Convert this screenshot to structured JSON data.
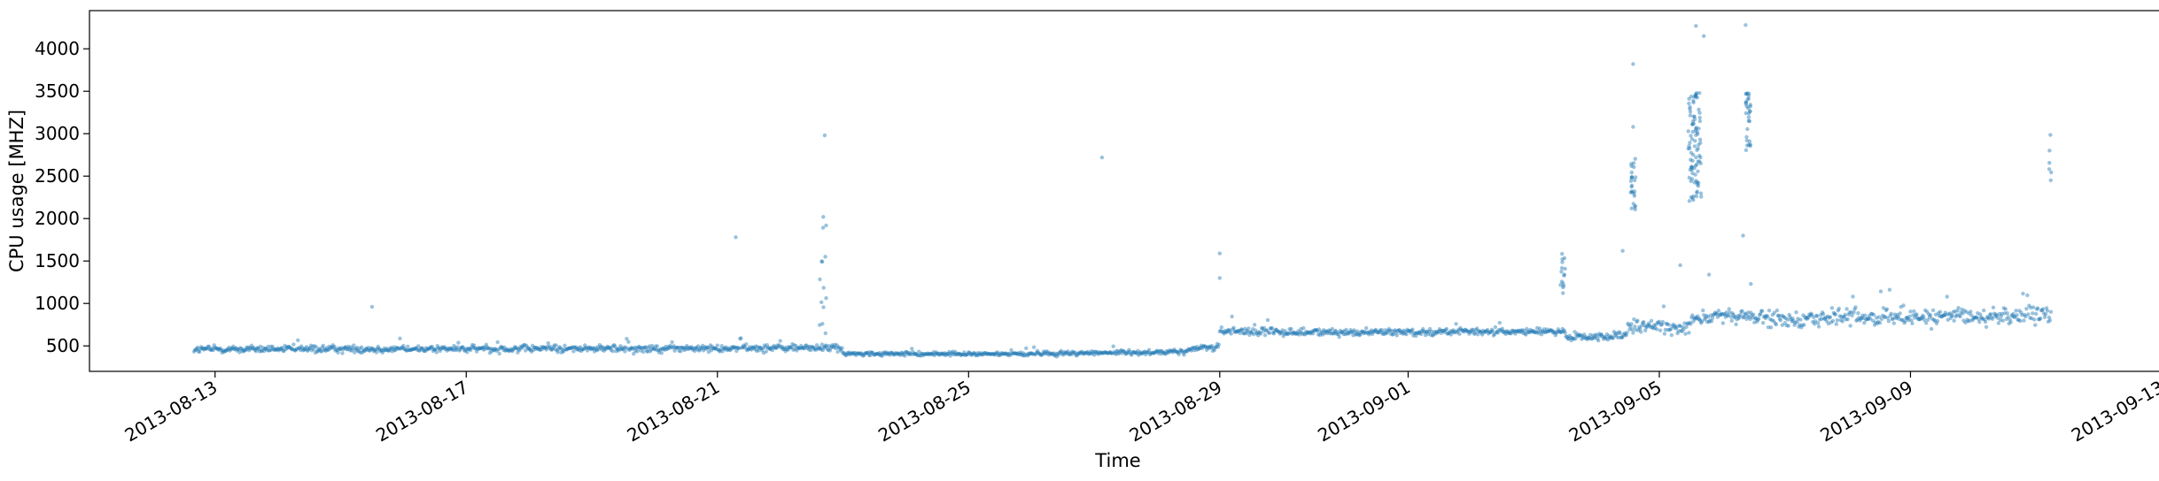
{
  "chart_data": {
    "type": "scatter",
    "title": "",
    "xlabel": "Time",
    "ylabel": "CPU usage [MHZ]",
    "xlim": [
      "2013-08-11",
      "2013-09-13"
    ],
    "ylim": [
      200,
      4450
    ],
    "grid": false,
    "marker_color": "#1f77b4",
    "x_ticks": [
      "2013-08-13",
      "2013-08-17",
      "2013-08-21",
      "2013-08-25",
      "2013-08-29",
      "2013-09-01",
      "2013-09-05",
      "2013-09-09",
      "2013-09-13"
    ],
    "y_ticks": [
      500,
      1000,
      1500,
      2000,
      2500,
      3000,
      3500,
      4000
    ],
    "baseline_segments": [
      {
        "start": "2013-08-12T16:00",
        "end": "2013-08-21T00:00",
        "y_start": 460,
        "y_end": 470,
        "noise": 45
      },
      {
        "start": "2013-08-21T00:00",
        "end": "2013-08-23T00:00",
        "y_start": 470,
        "y_end": 480,
        "noise": 50
      },
      {
        "start": "2013-08-23T00:00",
        "end": "2013-08-26T00:00",
        "y_start": 405,
        "y_end": 405,
        "noise": 25
      },
      {
        "start": "2013-08-26T00:00",
        "end": "2013-08-28T12:00",
        "y_start": 410,
        "y_end": 430,
        "noise": 30
      },
      {
        "start": "2013-08-28T12:00",
        "end": "2013-08-29T00:00",
        "y_start": 460,
        "y_end": 500,
        "noise": 40
      },
      {
        "start": "2013-08-29T00:00",
        "end": "2013-08-30T00:00",
        "y_start": 680,
        "y_end": 660,
        "noise": 60
      },
      {
        "start": "2013-08-30T00:00",
        "end": "2013-09-03T12:00",
        "y_start": 660,
        "y_end": 670,
        "noise": 45
      },
      {
        "start": "2013-09-03T12:00",
        "end": "2013-09-04T12:00",
        "y_start": 600,
        "y_end": 620,
        "noise": 50
      },
      {
        "start": "2013-09-04T12:00",
        "end": "2013-09-05T12:00",
        "y_start": 720,
        "y_end": 730,
        "noise": 90
      },
      {
        "start": "2013-09-05T12:00",
        "end": "2013-09-06T12:00",
        "y_start": 840,
        "y_end": 850,
        "noise": 90
      },
      {
        "start": "2013-09-06T12:00",
        "end": "2013-09-11T06:00",
        "y_start": 820,
        "y_end": 860,
        "noise": 110
      }
    ],
    "bursts": [
      {
        "start": "2013-09-04T13:00",
        "end": "2013-09-04T15:00",
        "y_min": 2100,
        "y_max": 2750,
        "count": 25
      },
      {
        "start": "2013-09-05T11:00",
        "end": "2013-09-05T16:00",
        "y_min": 2200,
        "y_max": 3500,
        "count": 90
      },
      {
        "start": "2013-09-06T09:00",
        "end": "2013-09-06T11:00",
        "y_min": 2800,
        "y_max": 3500,
        "count": 30
      },
      {
        "start": "2013-09-03T10:00",
        "end": "2013-09-03T12:00",
        "y_min": 1100,
        "y_max": 1600,
        "count": 15
      },
      {
        "start": "2013-08-22T15:00",
        "end": "2013-08-22T18:00",
        "y_min": 600,
        "y_max": 2100,
        "count": 14
      },
      {
        "start": "2013-09-11T04:00",
        "end": "2013-09-11T06:00",
        "y_min": 2400,
        "y_max": 3150,
        "count": 6
      }
    ],
    "outliers": [
      {
        "x": "2013-08-22T17:00",
        "y": 2980
      },
      {
        "x": "2013-08-21T07:00",
        "y": 1780
      },
      {
        "x": "2013-08-27T03:00",
        "y": 2720
      },
      {
        "x": "2013-08-29T00:00",
        "y": 1590
      },
      {
        "x": "2013-08-29T00:00",
        "y": 1300
      },
      {
        "x": "2013-08-15T12:00",
        "y": 960
      },
      {
        "x": "2013-09-04T14:00",
        "y": 3820
      },
      {
        "x": "2013-09-04T14:00",
        "y": 3080
      },
      {
        "x": "2013-09-04T10:00",
        "y": 1620
      },
      {
        "x": "2013-09-05T14:00",
        "y": 4270
      },
      {
        "x": "2013-09-05T17:00",
        "y": 4150
      },
      {
        "x": "2013-09-06T09:00",
        "y": 4280
      },
      {
        "x": "2013-09-06T08:00",
        "y": 1800
      },
      {
        "x": "2013-09-05T08:00",
        "y": 1450
      },
      {
        "x": "2013-09-05T19:00",
        "y": 1340
      },
      {
        "x": "2013-09-06T11:00",
        "y": 1230
      }
    ]
  }
}
